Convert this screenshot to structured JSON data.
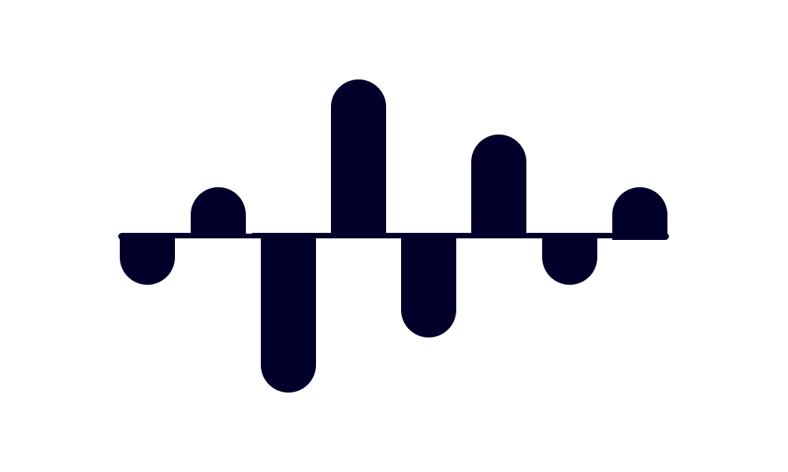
{
  "logo": {
    "icon": "waveform-logo-icon",
    "color": "#00002a",
    "background": "#ffffff"
  }
}
